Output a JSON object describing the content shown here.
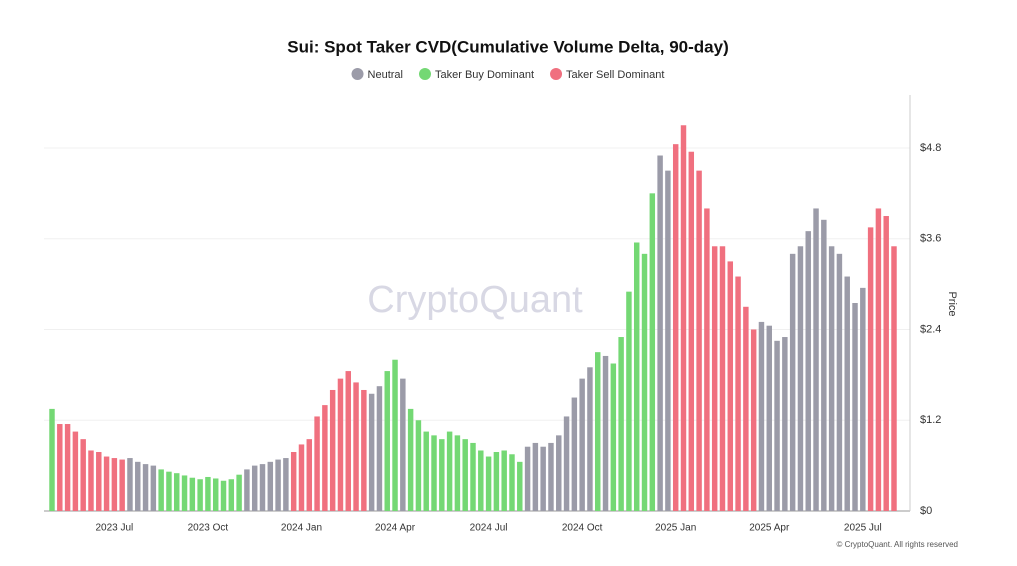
{
  "chart_data": {
    "type": "bar",
    "title": "Sui: Spot Taker CVD(Cumulative Volume Delta, 90-day)",
    "y_label": "Price",
    "watermark": "CryptoQuant",
    "credit": "© CryptoQuant. All rights reserved",
    "legend": "top",
    "grid": true,
    "y_axis_side": "right",
    "ylim": [
      0,
      5.5
    ],
    "yticks": [
      {
        "value": 0,
        "label": "$0"
      },
      {
        "value": 1.2,
        "label": "$1.2"
      },
      {
        "value": 2.4,
        "label": "$2.4"
      },
      {
        "value": 3.6,
        "label": "$3.6"
      },
      {
        "value": 4.8,
        "label": "$4.8"
      }
    ],
    "categories": [
      null,
      null,
      null,
      null,
      null,
      null,
      null,
      null,
      "2023 Jul",
      null,
      null,
      null,
      null,
      null,
      null,
      null,
      null,
      null,
      null,
      null,
      "2023 Oct",
      null,
      null,
      null,
      null,
      null,
      null,
      null,
      null,
      null,
      null,
      null,
      "2024 Jan",
      null,
      null,
      null,
      null,
      null,
      null,
      null,
      null,
      null,
      null,
      null,
      "2024 Apr",
      null,
      null,
      null,
      null,
      null,
      null,
      null,
      null,
      null,
      null,
      null,
      "2024 Jul",
      null,
      null,
      null,
      null,
      null,
      null,
      null,
      null,
      null,
      null,
      null,
      "2024 Oct",
      null,
      null,
      null,
      null,
      null,
      null,
      null,
      null,
      null,
      null,
      null,
      "2025 Jan",
      null,
      null,
      null,
      null,
      null,
      null,
      null,
      null,
      null,
      null,
      null,
      "2025 Apr",
      null,
      null,
      null,
      null,
      null,
      null,
      null,
      null,
      null,
      null,
      null,
      "2025 Jul",
      null,
      null,
      null,
      null
    ],
    "series": [
      {
        "name": "Neutral",
        "color": "#9b9ba8",
        "values": [
          null,
          null,
          null,
          null,
          null,
          null,
          null,
          null,
          null,
          null,
          0.7,
          0.65,
          0.62,
          0.6,
          null,
          null,
          null,
          null,
          null,
          null,
          null,
          null,
          null,
          null,
          null,
          0.55,
          0.6,
          0.62,
          0.65,
          0.68,
          0.7,
          null,
          null,
          null,
          null,
          null,
          null,
          null,
          null,
          null,
          null,
          1.55,
          1.65,
          null,
          null,
          1.75,
          null,
          null,
          null,
          null,
          null,
          null,
          null,
          null,
          null,
          null,
          null,
          null,
          null,
          null,
          null,
          0.85,
          0.9,
          0.85,
          0.9,
          1.0,
          1.25,
          1.5,
          1.75,
          1.9,
          null,
          2.05,
          null,
          null,
          null,
          null,
          null,
          null,
          4.7,
          4.5,
          null,
          null,
          null,
          null,
          null,
          null,
          null,
          null,
          null,
          null,
          null,
          2.5,
          2.45,
          2.25,
          2.3,
          3.4,
          3.5,
          3.7,
          4.0,
          3.85,
          3.5,
          3.4,
          3.1,
          2.75,
          2.95,
          null,
          null,
          null,
          null
        ]
      },
      {
        "name": "Taker Buy Dominant",
        "color": "#74d874",
        "values": [
          1.35,
          null,
          null,
          null,
          null,
          null,
          null,
          null,
          null,
          null,
          null,
          null,
          null,
          null,
          0.55,
          0.52,
          0.5,
          0.47,
          0.44,
          0.42,
          0.45,
          0.43,
          0.4,
          0.42,
          0.48,
          null,
          null,
          null,
          null,
          null,
          null,
          null,
          null,
          null,
          null,
          null,
          null,
          null,
          null,
          null,
          null,
          null,
          null,
          1.85,
          2.0,
          null,
          1.35,
          1.2,
          1.05,
          1.0,
          0.95,
          1.05,
          1.0,
          0.95,
          0.9,
          0.8,
          0.72,
          0.78,
          0.8,
          0.75,
          0.65,
          null,
          null,
          null,
          null,
          null,
          null,
          null,
          null,
          null,
          2.1,
          null,
          1.95,
          2.3,
          2.9,
          3.55,
          3.4,
          4.2,
          null,
          null,
          null,
          null,
          null,
          null,
          null,
          null,
          null,
          null,
          null,
          null,
          null,
          null,
          null,
          null,
          null,
          null,
          null,
          null,
          null,
          null,
          null,
          null,
          null,
          null,
          null,
          null,
          null,
          null,
          null
        ]
      },
      {
        "name": "Taker Sell Dominant",
        "color": "#f0707f",
        "values": [
          null,
          1.15,
          1.15,
          1.05,
          0.95,
          0.8,
          0.78,
          0.72,
          0.7,
          0.68,
          null,
          null,
          null,
          null,
          null,
          null,
          null,
          null,
          null,
          null,
          null,
          null,
          null,
          null,
          null,
          null,
          null,
          null,
          null,
          null,
          null,
          0.78,
          0.88,
          0.95,
          1.25,
          1.4,
          1.6,
          1.75,
          1.85,
          1.7,
          1.6,
          null,
          null,
          null,
          null,
          null,
          null,
          null,
          null,
          null,
          null,
          null,
          null,
          null,
          null,
          null,
          null,
          null,
          null,
          null,
          null,
          null,
          null,
          null,
          null,
          null,
          null,
          null,
          null,
          null,
          null,
          null,
          null,
          null,
          null,
          null,
          null,
          null,
          null,
          null,
          4.85,
          5.1,
          4.75,
          4.5,
          4.0,
          3.5,
          3.5,
          3.3,
          3.1,
          2.7,
          2.4,
          null,
          null,
          null,
          null,
          null,
          null,
          null,
          null,
          null,
          null,
          null,
          null,
          null,
          null,
          3.75,
          4.0,
          3.9,
          3.5
        ]
      }
    ]
  }
}
